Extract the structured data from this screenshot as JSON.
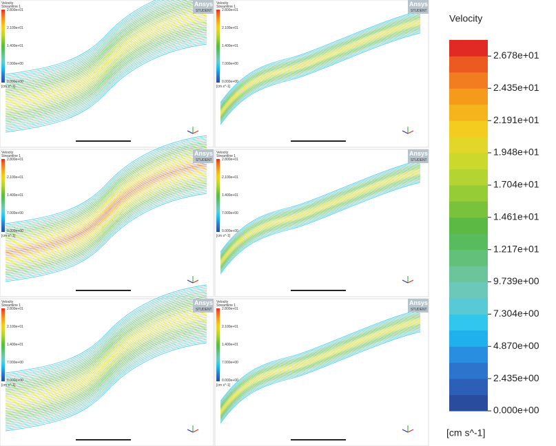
{
  "panel_overlay": {
    "brand": "Ansys",
    "edition": "STUDENT",
    "title": "Velocity",
    "subtitle": "Streamline 1",
    "ticks": [
      "2.800e+01",
      "2.100e+01",
      "1.400e+01",
      "7.000e+00",
      "0.000e+00"
    ],
    "unit": "[cm s^-1]"
  },
  "legend": {
    "title": "Velocity",
    "unit": "[cm s^-1]",
    "range": [
      0,
      28
    ],
    "ticks": [
      {
        "value": 26.78,
        "label": "2.678e+01"
      },
      {
        "value": 24.35,
        "label": "2.435e+01"
      },
      {
        "value": 21.91,
        "label": "2.191e+01"
      },
      {
        "value": 19.48,
        "label": "1.948e+01"
      },
      {
        "value": 17.04,
        "label": "1.704e+01"
      },
      {
        "value": 14.61,
        "label": "1.461e+01"
      },
      {
        "value": 12.17,
        "label": "1.217e+01"
      },
      {
        "value": 9.739,
        "label": "9.739e+00"
      },
      {
        "value": 7.304,
        "label": "7.304e+00"
      },
      {
        "value": 4.87,
        "label": "4.870e+00"
      },
      {
        "value": 2.435,
        "label": "2.435e+00"
      },
      {
        "value": 0,
        "label": "0.000e+00"
      }
    ],
    "colors": [
      "#2a4c9e",
      "#2b5fb8",
      "#2d74cc",
      "#2a8ee0",
      "#1fb0ee",
      "#30c6ee",
      "#58cad6",
      "#6cc8b8",
      "#6cc49a",
      "#62c07a",
      "#58bc5c",
      "#5cba44",
      "#78c23c",
      "#96cc36",
      "#b4d432",
      "#ccd82c",
      "#e2d628",
      "#f4cc20",
      "#f6b41c",
      "#f69a1c",
      "#f27c20",
      "#ec5a22",
      "#e22a24"
    ]
  }
}
